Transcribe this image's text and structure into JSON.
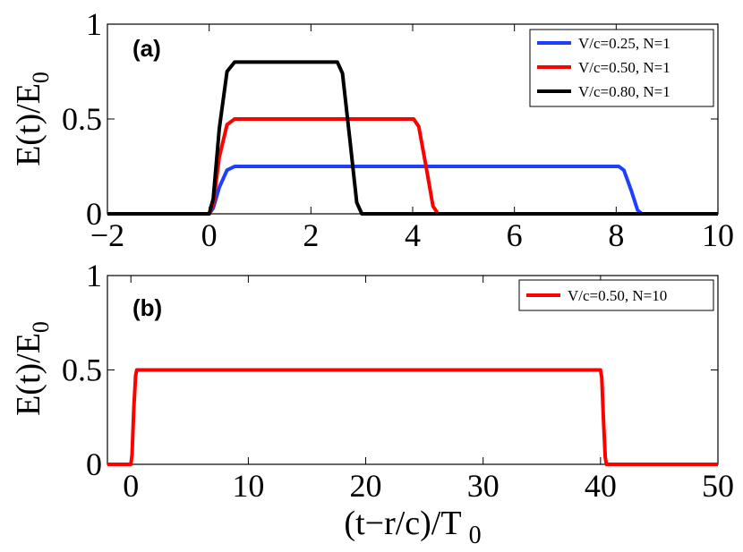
{
  "xlabel_main": "(t−r/c)/T",
  "xlabel_sub": "0",
  "chart_data": [
    {
      "type": "line",
      "panel_label": "(a)",
      "ylabel_main": "E(t)/E",
      "ylabel_sub": "0",
      "xlim": [
        -2,
        10
      ],
      "ylim": [
        0,
        1
      ],
      "xticks": [
        -2,
        0,
        2,
        4,
        6,
        8,
        10
      ],
      "xtick_labels": [
        "−2",
        "0",
        "2",
        "4",
        "6",
        "8",
        "10"
      ],
      "yticks": [
        0,
        0.5,
        1
      ],
      "ytick_labels": [
        "0",
        "0.5",
        "1"
      ],
      "legend_position": "top-right",
      "series": [
        {
          "name": "V/c=0.25, N=1",
          "color": "#1f3fff",
          "x": [
            -2,
            0,
            0.08,
            0.2,
            0.35,
            0.5,
            8.05,
            8.15,
            8.3,
            8.42,
            8.5,
            10
          ],
          "y": [
            0,
            0,
            0.03,
            0.14,
            0.23,
            0.25,
            0.25,
            0.23,
            0.12,
            0.02,
            0,
            0
          ]
        },
        {
          "name": "V/c=0.50, N=1",
          "color": "#ff0000",
          "x": [
            -2,
            0,
            0.08,
            0.2,
            0.35,
            0.5,
            4.02,
            4.12,
            4.27,
            4.4,
            4.5,
            10
          ],
          "y": [
            0,
            0,
            0.05,
            0.3,
            0.47,
            0.5,
            0.5,
            0.46,
            0.24,
            0.04,
            0,
            0
          ]
        },
        {
          "name": "V/c=0.80, N=1",
          "color": "#000000",
          "x": [
            -2,
            0,
            0.08,
            0.2,
            0.35,
            0.5,
            2.52,
            2.62,
            2.77,
            2.9,
            3.0,
            10
          ],
          "y": [
            0,
            0,
            0.08,
            0.45,
            0.75,
            0.8,
            0.8,
            0.74,
            0.38,
            0.06,
            0,
            0
          ]
        }
      ]
    },
    {
      "type": "line",
      "panel_label": "(b)",
      "ylabel_main": "E(t)/E",
      "ylabel_sub": "0",
      "xlim": [
        -2,
        50
      ],
      "ylim": [
        0,
        1
      ],
      "xticks": [
        0,
        10,
        20,
        30,
        40,
        50
      ],
      "xtick_labels": [
        "0",
        "10",
        "20",
        "30",
        "40",
        "50"
      ],
      "yticks": [
        0,
        0.5,
        1
      ],
      "ytick_labels": [
        "0",
        "0.5",
        "1"
      ],
      "legend_position": "top-right",
      "series": [
        {
          "name": "V/c=0.50, N=10",
          "color": "#ff0000",
          "x": [
            -2,
            0,
            0.1,
            0.25,
            0.4,
            0.5,
            40.0,
            40.1,
            40.25,
            40.4,
            40.5,
            50
          ],
          "y": [
            0,
            0,
            0.05,
            0.3,
            0.47,
            0.5,
            0.5,
            0.46,
            0.24,
            0.04,
            0,
            0
          ]
        }
      ]
    }
  ]
}
